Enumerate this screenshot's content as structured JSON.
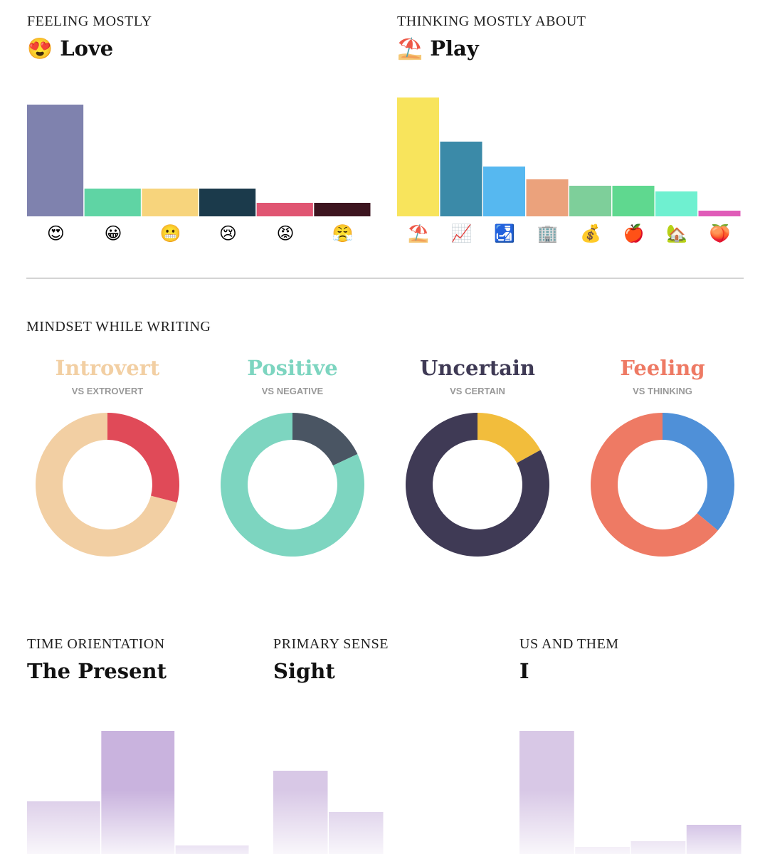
{
  "mindset_heading": "MINDSET WHILE WRITING",
  "chart_data": [
    {
      "type": "bar",
      "label": "FEELING MOSTLY",
      "title": "😍 Love",
      "categories": [
        "😍",
        "😀",
        "😬",
        "😢",
        "😡",
        "😤"
      ],
      "values": [
        157,
        39,
        39,
        39,
        19,
        19
      ],
      "colors": [
        "#7f82ae",
        "#5fd4a4",
        "#f7d47c",
        "#1b3a4b",
        "#e05572",
        "#3d1520"
      ],
      "ylim": [
        0,
        170
      ]
    },
    {
      "type": "bar",
      "label": "THINKING MOSTLY ABOUT",
      "title": "⛱️ Play",
      "categories": [
        "⛱️",
        "📈",
        "🛃",
        "🏢",
        "💰",
        "🍎",
        "🏡",
        "🍑"
      ],
      "values": [
        167,
        105,
        70,
        52,
        43,
        43,
        35,
        8
      ],
      "colors": [
        "#f8e45c",
        "#3b8aa8",
        "#56b8f0",
        "#eba27c",
        "#7ecf9a",
        "#5fd88f",
        "#6ff0d0",
        "#e05cb8"
      ],
      "ylim": [
        0,
        170
      ]
    },
    {
      "type": "donut",
      "title": "Introvert",
      "subtitle": "VS EXTROVERT",
      "title_color": "#f2cfa3",
      "values": [
        29,
        71
      ],
      "colors": [
        "#e04a58",
        "#f2cfa3"
      ]
    },
    {
      "type": "donut",
      "title": "Positive",
      "subtitle": "VS NEGATIVE",
      "title_color": "#7dd5c0",
      "values": [
        18,
        82
      ],
      "colors": [
        "#4a5563",
        "#7dd5c0"
      ]
    },
    {
      "type": "donut",
      "title": "Uncertain",
      "subtitle": "VS CERTAIN",
      "title_color": "#3f3a55",
      "values": [
        17,
        83
      ],
      "colors": [
        "#f2bd3c",
        "#3f3a55"
      ]
    },
    {
      "type": "donut",
      "title": "Feeling",
      "subtitle": "VS THINKING",
      "title_color": "#ee7a64",
      "values": [
        36,
        64
      ],
      "colors": [
        "#4f90d8",
        "#ee7a64"
      ]
    },
    {
      "type": "bar",
      "label": "TIME ORIENTATION",
      "title": "The Present",
      "values": [
        74,
        173,
        12
      ],
      "colors": [
        "#d8c8e6",
        "#c9b3de",
        "#b193d2"
      ],
      "ylim": [
        0,
        180
      ]
    },
    {
      "type": "bar",
      "label": "PRIMARY SENSE",
      "title": "Sight",
      "values": [
        117,
        59
      ],
      "colors": [
        "#d8c8e6",
        "#d5c5e5"
      ],
      "ylim": [
        0,
        180
      ]
    },
    {
      "type": "bar",
      "label": "US AND THEM",
      "title": "I",
      "values": [
        173,
        10,
        18,
        41
      ],
      "colors": [
        "#d8c8e6",
        "#d0bde2",
        "#c6b0dd",
        "#b193d2"
      ],
      "ylim": [
        0,
        180
      ]
    }
  ]
}
